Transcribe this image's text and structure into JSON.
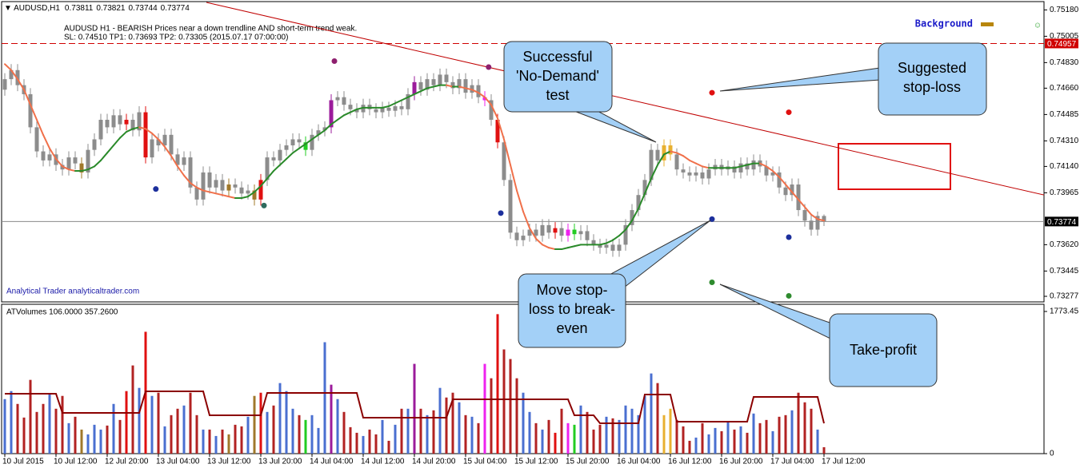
{
  "chart_data": {
    "type": "candlestick",
    "title": "AUDUSD,H1",
    "signal_text": [
      "AUDUSD H1 - BEARISH Prices near a down trendline AND short-term trend weak.",
      "SL: 0.74510 TP1: 0.73693 TP2: 0.73305 (2015.07.17 07:00:00)"
    ],
    "brand": "Analytical Trader analyticaltrader.com",
    "legend": {
      "label": "Background",
      "color": "#b8860b"
    },
    "status_icon": "☺",
    "categories": [
      "10 Jul 2015",
      null,
      null,
      null,
      null,
      null,
      null,
      null,
      "10 Jul 12:00",
      null,
      null,
      null,
      null,
      null,
      null,
      null,
      "12 Jul 20:00",
      null,
      null,
      null,
      null,
      null,
      null,
      null,
      "13 Jul 04:00",
      null,
      null,
      null,
      null,
      null,
      null,
      null,
      "13 Jul 12:00",
      null,
      null,
      null,
      null,
      null,
      null,
      null,
      "13 Jul 20:00",
      null,
      null,
      null,
      null,
      null,
      null,
      null,
      "14 Jul 04:00",
      null,
      null,
      null,
      null,
      null,
      null,
      null,
      "14 Jul 12:00",
      null,
      null,
      null,
      null,
      null,
      null,
      null,
      "14 Jul 20:00",
      null,
      null,
      null,
      null,
      null,
      null,
      null,
      "15 Jul 04:00",
      null,
      null,
      null,
      null,
      null,
      null,
      null,
      "15 Jul 12:00",
      null,
      null,
      null,
      null,
      null,
      null,
      null,
      "15 Jul 20:00",
      null,
      null,
      null,
      null,
      null,
      null,
      null,
      "16 Jul 04:00",
      null,
      null,
      null,
      null,
      null,
      null,
      null,
      "16 Jul 12:00",
      null,
      null,
      null,
      null,
      null,
      null,
      null,
      "16 Jul 20:00",
      null,
      null,
      null,
      null,
      null,
      null,
      null,
      "17 Jul 04:00",
      null,
      null,
      null,
      null,
      null,
      null,
      null,
      "17 Jul 12:00"
    ],
    "open": [
      0.7465,
      0.7472,
      0.7478,
      0.7468,
      0.7462,
      0.744,
      0.7424,
      0.7418,
      0.7422,
      0.7415,
      0.7412,
      0.742,
      0.7416,
      0.741,
      0.7425,
      0.7432,
      0.7445,
      0.744,
      0.7448,
      0.7442,
      0.7445,
      0.7438,
      0.745,
      0.742,
      0.7432,
      0.7428,
      0.7435,
      0.7422,
      0.7415,
      0.742,
      0.74,
      0.7392,
      0.741,
      0.74,
      0.7405,
      0.7398,
      0.7402,
      0.74,
      0.7396,
      0.7398,
      0.7392,
      0.7405,
      0.742,
      0.7418,
      0.7425,
      0.7428,
      0.7432,
      0.743,
      0.7425,
      0.7435,
      0.7438,
      0.744,
      0.7458,
      0.746,
      0.7455,
      0.7452,
      0.745,
      0.7455,
      0.7452,
      0.745,
      0.7453,
      0.7451,
      0.7454,
      0.7452,
      0.7462,
      0.747,
      0.7465,
      0.7472,
      0.7468,
      0.7475,
      0.747,
      0.7466,
      0.7472,
      0.7463,
      0.7468,
      0.746,
      0.7458,
      0.7445,
      0.743,
      0.7405,
      0.737,
      0.7365,
      0.7368,
      0.7372,
      0.7368,
      0.7375,
      0.737,
      0.7373,
      0.7368,
      0.7372,
      0.7369,
      0.7371,
      0.7365,
      0.7362,
      0.736,
      0.7362,
      0.7358,
      0.7362,
      0.7375,
      0.7385,
      0.7395,
      0.7405,
      0.7425,
      0.7418,
      0.7428,
      0.7422,
      0.7412,
      0.741,
      0.7408,
      0.741,
      0.7406,
      0.7412,
      0.7415,
      0.7412,
      0.7414,
      0.741,
      0.7416,
      0.7412,
      0.7418,
      0.7414,
      0.7408,
      0.741,
      0.74,
      0.7395,
      0.7402,
      0.7385,
      0.7378,
      0.7372,
      0.73811
    ],
    "high": [
      0.7476,
      0.7482,
      0.7482,
      0.7472,
      0.7466,
      0.7444,
      0.7428,
      0.7426,
      0.7426,
      0.7419,
      0.7424,
      0.7424,
      0.742,
      0.7429,
      0.7436,
      0.7449,
      0.7449,
      0.7452,
      0.7452,
      0.7449,
      0.7449,
      0.7454,
      0.7454,
      0.7436,
      0.7436,
      0.7439,
      0.7439,
      0.7426,
      0.7424,
      0.7424,
      0.7404,
      0.7414,
      0.7414,
      0.7409,
      0.7409,
      0.7406,
      0.7406,
      0.7404,
      0.7402,
      0.7402,
      0.7409,
      0.7424,
      0.7424,
      0.7429,
      0.7432,
      0.7436,
      0.7436,
      0.7434,
      0.7439,
      0.7442,
      0.7444,
      0.7462,
      0.7464,
      0.7464,
      0.7459,
      0.7456,
      0.7459,
      0.7459,
      0.7456,
      0.7457,
      0.7457,
      0.7458,
      0.7458,
      0.7466,
      0.7474,
      0.7474,
      0.7476,
      0.7476,
      0.7479,
      0.7479,
      0.7474,
      0.7476,
      0.7476,
      0.7472,
      0.7472,
      0.7464,
      0.7462,
      0.7449,
      0.7434,
      0.7409,
      0.7374,
      0.7372,
      0.7376,
      0.7376,
      0.7379,
      0.7379,
      0.7377,
      0.7377,
      0.7376,
      0.7376,
      0.7375,
      0.7375,
      0.7369,
      0.7366,
      0.7366,
      0.7366,
      0.7366,
      0.7379,
      0.7389,
      0.7399,
      0.7409,
      0.7429,
      0.7429,
      0.7432,
      0.7432,
      0.7426,
      0.7416,
      0.7414,
      0.7414,
      0.7414,
      0.7416,
      0.7419,
      0.7419,
      0.7418,
      0.7418,
      0.742,
      0.742,
      0.7422,
      0.7422,
      0.7418,
      0.7414,
      0.7414,
      0.7404,
      0.7406,
      0.7406,
      0.7389,
      0.7382,
      0.7384,
      0.73821
    ],
    "low": [
      0.7461,
      0.7468,
      0.7464,
      0.7458,
      0.7436,
      0.742,
      0.7414,
      0.7414,
      0.7411,
      0.7408,
      0.7408,
      0.7412,
      0.7406,
      0.7406,
      0.7421,
      0.7428,
      0.7436,
      0.7436,
      0.7438,
      0.7438,
      0.7434,
      0.7434,
      0.7416,
      0.7416,
      0.7424,
      0.7424,
      0.7418,
      0.7411,
      0.7411,
      0.7396,
      0.7388,
      0.7388,
      0.7396,
      0.7396,
      0.7394,
      0.7394,
      0.7396,
      0.7392,
      0.7392,
      0.7388,
      0.7388,
      0.7401,
      0.7414,
      0.7414,
      0.7421,
      0.7424,
      0.7426,
      0.7421,
      0.7421,
      0.7431,
      0.7434,
      0.7436,
      0.7454,
      0.7451,
      0.7448,
      0.7446,
      0.7446,
      0.7448,
      0.7446,
      0.7446,
      0.7447,
      0.7447,
      0.7448,
      0.7448,
      0.7458,
      0.7461,
      0.7461,
      0.7464,
      0.7464,
      0.7466,
      0.7462,
      0.7462,
      0.7459,
      0.7459,
      0.7456,
      0.7454,
      0.7441,
      0.7426,
      0.7401,
      0.7366,
      0.7361,
      0.7361,
      0.7364,
      0.7364,
      0.7364,
      0.7366,
      0.7366,
      0.7364,
      0.7364,
      0.7365,
      0.7365,
      0.7361,
      0.7358,
      0.7356,
      0.7356,
      0.7354,
      0.7354,
      0.7358,
      0.7371,
      0.7381,
      0.7391,
      0.7401,
      0.7414,
      0.7414,
      0.7418,
      0.7408,
      0.7406,
      0.7404,
      0.7404,
      0.7402,
      0.7402,
      0.7408,
      0.7408,
      0.7408,
      0.7406,
      0.7406,
      0.7408,
      0.7408,
      0.741,
      0.7404,
      0.7404,
      0.7396,
      0.7391,
      0.7391,
      0.7381,
      0.7374,
      0.7368,
      0.7368,
      0.73744
    ],
    "close": [
      0.7472,
      0.7478,
      0.7468,
      0.7462,
      0.744,
      0.7424,
      0.7418,
      0.7422,
      0.7415,
      0.7412,
      0.742,
      0.7416,
      0.741,
      0.7425,
      0.7432,
      0.7445,
      0.744,
      0.7448,
      0.7442,
      0.7445,
      0.7438,
      0.745,
      0.742,
      0.7432,
      0.7428,
      0.7435,
      0.7422,
      0.7415,
      0.742,
      0.74,
      0.7392,
      0.741,
      0.74,
      0.7405,
      0.7398,
      0.7402,
      0.74,
      0.7396,
      0.7398,
      0.7392,
      0.7405,
      0.742,
      0.7418,
      0.7425,
      0.7428,
      0.7432,
      0.743,
      0.7425,
      0.7435,
      0.7438,
      0.744,
      0.7458,
      0.746,
      0.7455,
      0.7452,
      0.745,
      0.7455,
      0.7452,
      0.745,
      0.7453,
      0.7451,
      0.7454,
      0.7452,
      0.7462,
      0.747,
      0.7465,
      0.7472,
      0.7468,
      0.7475,
      0.747,
      0.7466,
      0.7472,
      0.7463,
      0.7468,
      0.746,
      0.7458,
      0.7445,
      0.743,
      0.7405,
      0.737,
      0.7365,
      0.7368,
      0.7372,
      0.7368,
      0.7375,
      0.737,
      0.7373,
      0.7368,
      0.7372,
      0.7369,
      0.7371,
      0.7365,
      0.7362,
      0.736,
      0.7362,
      0.7358,
      0.7362,
      0.7375,
      0.7385,
      0.7395,
      0.7405,
      0.7425,
      0.7418,
      0.7428,
      0.7422,
      0.7412,
      0.741,
      0.7408,
      0.741,
      0.7406,
      0.7412,
      0.7415,
      0.7412,
      0.7414,
      0.741,
      0.7416,
      0.7412,
      0.7418,
      0.7414,
      0.7408,
      0.741,
      0.74,
      0.7395,
      0.7402,
      0.7385,
      0.7378,
      0.7372,
      0.73811,
      0.73774
    ],
    "color": "#8c8c8c",
    "highlights": [
      [
        12,
        "#a0782a"
      ],
      [
        19,
        "#e01010"
      ],
      [
        22,
        "#e01010"
      ],
      [
        35,
        "#a0782a"
      ],
      [
        39,
        "#a0782a"
      ],
      [
        40,
        "#e01010"
      ],
      [
        47,
        "#22cc22"
      ],
      [
        51,
        "#9b1b9b"
      ],
      [
        64,
        "#9b1b9b"
      ],
      [
        75,
        "#ee22ee"
      ],
      [
        77,
        "#e01010"
      ],
      [
        86,
        "#e01010"
      ],
      [
        88,
        "#ee22ee"
      ],
      [
        89,
        "#22cc22"
      ],
      [
        103,
        "#e8b030"
      ],
      [
        104,
        "#e8b030"
      ]
    ],
    "ylim": [
      0.7324,
      0.7523
    ],
    "yticks": [
      {
        "value": 0.7518,
        "label": "0.75180"
      },
      0.75005,
      {
        "value": 0.7483,
        "label": "0.74830"
      },
      {
        "value": 0.7466,
        "label": "0.74660"
      },
      0.74485,
      {
        "value": 0.7431,
        "label": "0.74310"
      },
      {
        "value": 0.7414,
        "label": "0.74140"
      },
      0.73965,
      {
        "value": 0.7362,
        "label": "0.73620"
      },
      0.73445,
      0.73277
    ],
    "moving_average": {
      "rising_color": "#2a8a2a",
      "falling_color": "#f0704a",
      "values": [
        0.7482,
        0.7478,
        0.7472,
        0.7465,
        0.7455,
        0.7445,
        0.7435,
        0.7426,
        0.7419,
        0.7414,
        0.7412,
        0.7411,
        0.7411,
        0.7412,
        0.7414,
        0.7418,
        0.7423,
        0.7428,
        0.7433,
        0.7437,
        0.7439,
        0.744,
        0.7439,
        0.7436,
        0.7432,
        0.7427,
        0.7421,
        0.7414,
        0.7408,
        0.7403,
        0.74,
        0.7398,
        0.7397,
        0.7396,
        0.7395,
        0.7394,
        0.7393,
        0.7393,
        0.7394,
        0.7397,
        0.7401,
        0.7406,
        0.7411,
        0.7415,
        0.7419,
        0.7423,
        0.7426,
        0.7429,
        0.7432,
        0.7435,
        0.7438,
        0.7442,
        0.7445,
        0.7448,
        0.745,
        0.7452,
        0.7453,
        0.7453,
        0.7453,
        0.7453,
        0.7454,
        0.7456,
        0.7458,
        0.746,
        0.7462,
        0.7464,
        0.7466,
        0.7467,
        0.7468,
        0.7468,
        0.7467,
        0.7467,
        0.7466,
        0.7465,
        0.7463,
        0.746,
        0.7455,
        0.7446,
        0.7432,
        0.7415,
        0.7398,
        0.7384,
        0.7373,
        0.7366,
        0.7362,
        0.736,
        0.7359,
        0.7359,
        0.736,
        0.7361,
        0.7362,
        0.7362,
        0.7362,
        0.7362,
        0.7363,
        0.7365,
        0.7368,
        0.7372,
        0.7378,
        0.7386,
        0.7396,
        0.7406,
        0.7415,
        0.7422,
        0.7424,
        0.7423,
        0.7421,
        0.7418,
        0.7416,
        0.7414,
        0.7413,
        0.7413,
        0.7413,
        0.7413,
        0.7413,
        0.7414,
        0.7415,
        0.7416,
        0.7416,
        0.7414,
        0.7411,
        0.7407,
        0.7402,
        0.7397,
        0.7392,
        0.7387,
        0.7382,
        0.7379,
        0.7378
      ]
    },
    "trendline": {
      "color": "#c00000",
      "x": [
        31.5,
        162.4
      ],
      "y": [
        0.7523,
        0.7395
      ]
    },
    "hlines": [
      {
        "value": 0.74957,
        "color": "#d00000",
        "label_color": "#d00000",
        "dashed": true
      },
      {
        "value": 0.73774,
        "color": "#8a8a8a",
        "label_color": "#000000",
        "dashed": false
      }
    ],
    "markers": [
      {
        "color": "#1c2f9c",
        "x": [
          23.6,
          77.5,
          110.5,
          122.5
        ],
        "y": [
          0.7399,
          0.7383,
          0.7379,
          0.7367
        ]
      },
      {
        "color": "#8e1f6e",
        "x": [
          51.5,
          75.6
        ],
        "y": [
          0.7484,
          0.748
        ]
      },
      {
        "color": "#2e6b5e",
        "x": [
          40.5
        ],
        "y": [
          0.7388
        ]
      },
      {
        "color": "#e01010",
        "x": [
          110.5,
          122.5
        ],
        "y": [
          0.7463,
          0.745
        ]
      },
      {
        "color": "#2e8b2e",
        "x": [
          110.5,
          122.5
        ],
        "y": [
          0.7337,
          0.7328
        ]
      }
    ],
    "annotations": [
      {
        "lines": [
          "Successful",
          "'No-Demand'",
          "test"
        ]
      },
      {
        "lines": [
          "Suggested",
          "stop-loss"
        ]
      },
      {
        "lines": [
          "Move stop-",
          "loss to break-",
          "even"
        ]
      },
      {
        "lines": [
          "Take-profit"
        ]
      }
    ],
    "volume": {
      "title": "ATVolumes 106.0000 357.2600",
      "up_color": "#4a6fd0",
      "down_color": "#b22222",
      "ma_color": "#8b0000",
      "ylim": [
        0,
        1773.45
      ],
      "yticks": [
        0,
        1773.45
      ],
      "values": [
        680,
        780,
        620,
        450,
        920,
        520,
        620,
        740,
        560,
        720,
        380,
        460,
        300,
        240,
        360,
        300,
        350,
        620,
        420,
        780,
        1100,
        820,
        1520,
        720,
        760,
        340,
        480,
        560,
        600,
        760,
        480,
        300,
        300,
        220,
        300,
        240,
        360,
        340,
        460,
        720,
        760,
        520,
        600,
        880,
        780,
        560,
        480,
        420,
        480,
        320,
        1390,
        860,
        680,
        520,
        330,
        260,
        220,
        300,
        240,
        420,
        160,
        360,
        560,
        560,
        1120,
        560,
        480,
        540,
        820,
        700,
        760,
        640,
        480,
        460,
        380,
        1120,
        940,
        1740,
        1300,
        1180,
        940,
        760,
        520,
        380,
        300,
        420,
        260,
        560,
        380,
        360,
        600,
        520,
        300,
        360,
        460,
        440,
        420,
        600,
        560,
        480,
        720,
        1000,
        880,
        480,
        560,
        420,
        340,
        160,
        200,
        380,
        240,
        320,
        280,
        400,
        300,
        340,
        260,
        500,
        380,
        420,
        280,
        460,
        480,
        540,
        760,
        640,
        560,
        300,
        80
      ],
      "ma": [
        747,
        747,
        747,
        747,
        747,
        747,
        747,
        747,
        747,
        508,
        508,
        508,
        508,
        508,
        508,
        508,
        508,
        508,
        508,
        508,
        508,
        508,
        777,
        777,
        777,
        777,
        777,
        777,
        777,
        777,
        777,
        777,
        478,
        478,
        478,
        478,
        478,
        478,
        478,
        478,
        478,
        757,
        757,
        757,
        757,
        757,
        757,
        757,
        757,
        757,
        757,
        757,
        757,
        757,
        757,
        757,
        448,
        448,
        448,
        448,
        448,
        448,
        448,
        448,
        448,
        448,
        448,
        448,
        448,
        448,
        677,
        677,
        677,
        677,
        677,
        677,
        677,
        677,
        677,
        677,
        677,
        677,
        677,
        677,
        677,
        677,
        677,
        677,
        677,
        478,
        478,
        478,
        478,
        378,
        378,
        378,
        378,
        378,
        378,
        378,
        737,
        737,
        737,
        737,
        737,
        398,
        398,
        398,
        398,
        398,
        398,
        398,
        398,
        398,
        398,
        398,
        398,
        707,
        707,
        707,
        707,
        707,
        707,
        707,
        707,
        707,
        707,
        707,
        378
      ]
    }
  }
}
